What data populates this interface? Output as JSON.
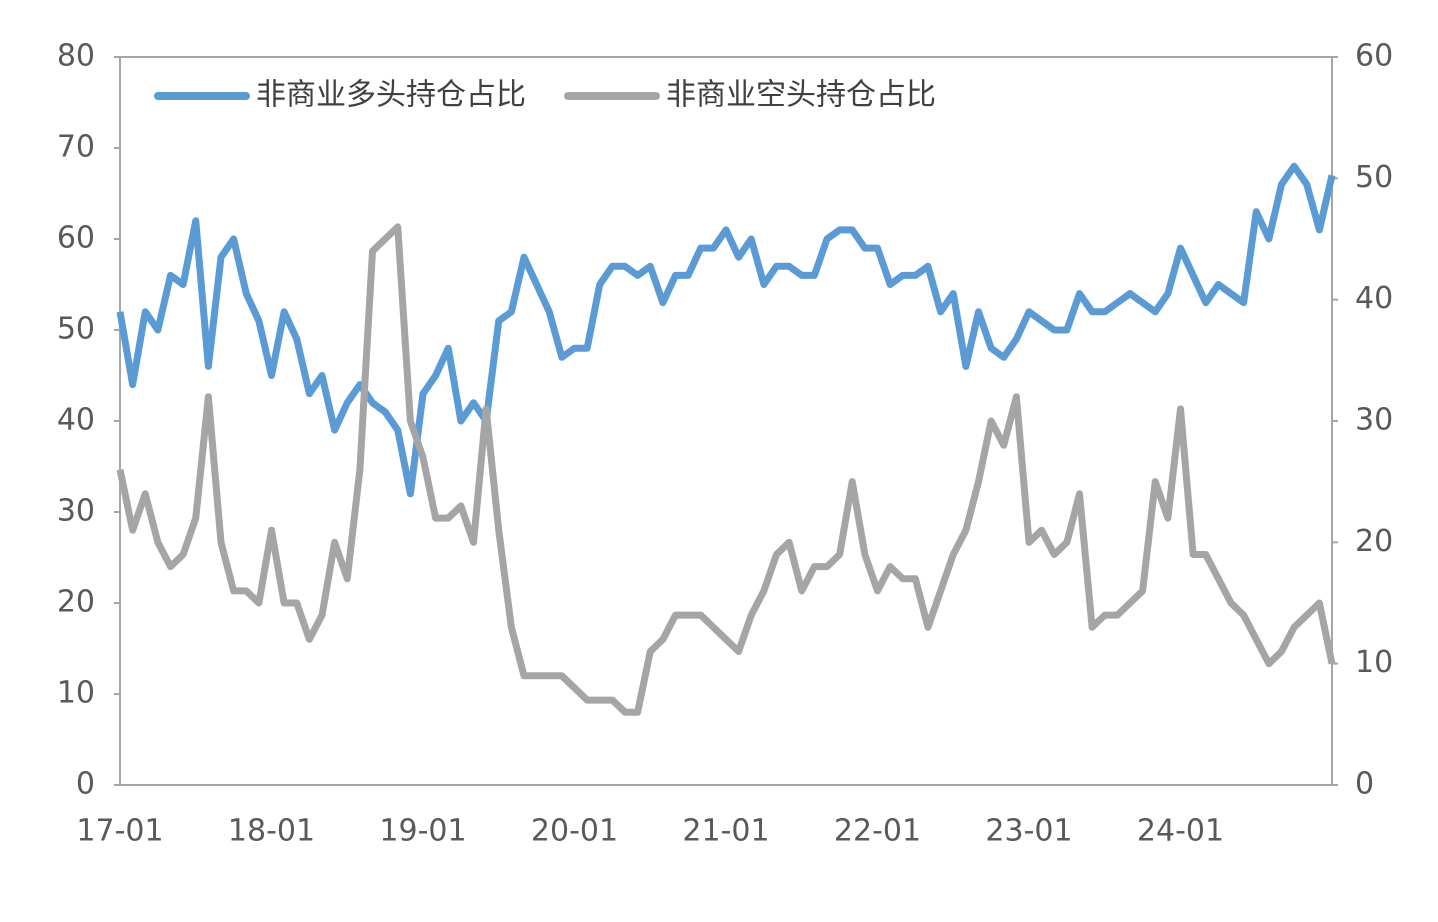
{
  "chart_data": {
    "type": "line",
    "categories": [
      "17-01",
      null,
      null,
      null,
      null,
      null,
      null,
      null,
      null,
      null,
      null,
      null,
      "18-01",
      null,
      null,
      null,
      null,
      null,
      null,
      null,
      null,
      null,
      null,
      null,
      "19-01",
      null,
      null,
      null,
      null,
      null,
      null,
      null,
      null,
      null,
      null,
      null,
      "20-01",
      null,
      null,
      null,
      null,
      null,
      null,
      null,
      null,
      null,
      null,
      null,
      "21-01",
      null,
      null,
      null,
      null,
      null,
      null,
      null,
      null,
      null,
      null,
      null,
      "22-01",
      null,
      null,
      null,
      null,
      null,
      null,
      null,
      null,
      null,
      null,
      null,
      "23-01",
      null,
      null,
      null,
      null,
      null,
      null,
      null,
      null,
      null,
      null,
      null,
      "24-01",
      null,
      null,
      null,
      null,
      null,
      null,
      null,
      null,
      null,
      null,
      null,
      null
    ],
    "series": [
      {
        "name": "非商业多头持仓占比",
        "color": "#5b9bd5",
        "axis": "y",
        "values": [
          52,
          44,
          52,
          50,
          56,
          55,
          62,
          46,
          58,
          60,
          54,
          51,
          45,
          52,
          49,
          43,
          45,
          39,
          42,
          44,
          42,
          41,
          39,
          32,
          43,
          45,
          48,
          40,
          42,
          40,
          51,
          52,
          58,
          55,
          52,
          47,
          48,
          48,
          55,
          57,
          57,
          56,
          57,
          53,
          56,
          56,
          59,
          59,
          61,
          58,
          60,
          55,
          57,
          57,
          56,
          56,
          60,
          61,
          61,
          59,
          59,
          55,
          56,
          56,
          57,
          52,
          54,
          46,
          52,
          48,
          47,
          49,
          52,
          51,
          50,
          50,
          54,
          52,
          52,
          53,
          54,
          53,
          52,
          54,
          59,
          56,
          53,
          55,
          54,
          53,
          63,
          60,
          66,
          68,
          66,
          61,
          67
        ]
      },
      {
        "name": "非商业空头持仓占比",
        "color": "#a5a5a5",
        "axis": "y2",
        "values": [
          26,
          21,
          24,
          20,
          18,
          19,
          22,
          32,
          20,
          16,
          16,
          15,
          21,
          15,
          15,
          12,
          14,
          20,
          17,
          26,
          44,
          45,
          46,
          30,
          27,
          22,
          22,
          23,
          20,
          31,
          21,
          13,
          9,
          9,
          9,
          9,
          8,
          7,
          7,
          7,
          6,
          6,
          11,
          12,
          14,
          14,
          14,
          13,
          12,
          11,
          14,
          16,
          19,
          20,
          16,
          18,
          18,
          19,
          25,
          19,
          16,
          18,
          17,
          17,
          13,
          16,
          19,
          21,
          25,
          30,
          28,
          32,
          20,
          21,
          19,
          20,
          24,
          13,
          14,
          14,
          15,
          16,
          25,
          22,
          31,
          19,
          19,
          17,
          15,
          14,
          12,
          10,
          11,
          13,
          14,
          15,
          10
        ]
      }
    ],
    "ylim": [
      0,
      80
    ],
    "yticks": [
      0,
      10,
      20,
      30,
      40,
      50,
      60,
      70,
      80
    ],
    "y2lim": [
      0,
      60
    ],
    "y2ticks": [
      0,
      10,
      20,
      30,
      40,
      50,
      60
    ],
    "legend": "top-left"
  }
}
